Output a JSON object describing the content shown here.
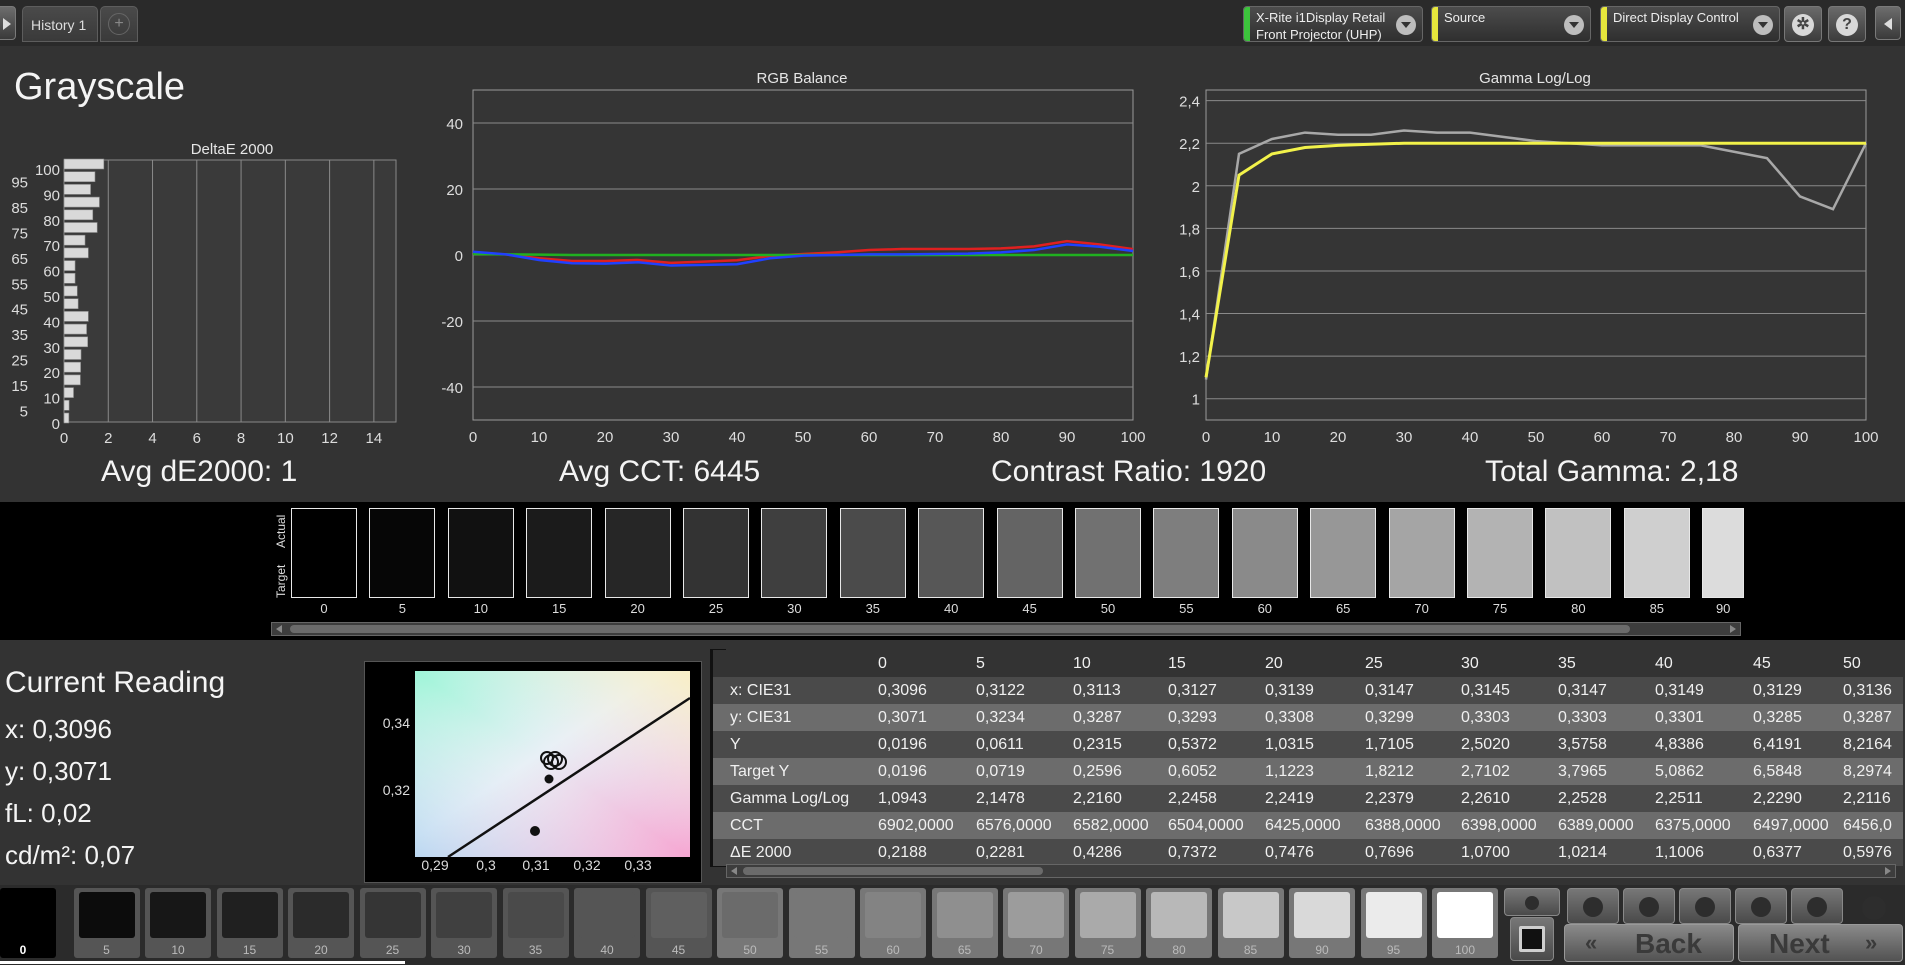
{
  "tabs": [
    {
      "label": "History 1"
    }
  ],
  "tab_add_label": "+",
  "header": {
    "meter": {
      "line1": "X-Rite i1Display Retail",
      "line2": "Front Projector (UHP)",
      "stripe_color": "#3cc43c"
    },
    "source": {
      "label": "Source",
      "stripe_color": "#e6e63c"
    },
    "display": {
      "label": "Direct Display Control",
      "stripe_color": "#e6e63c"
    },
    "icons": [
      "gear-icon",
      "help-icon",
      "collapse-icon"
    ]
  },
  "page_title": "Grayscale",
  "summary": {
    "avg_de": "Avg dE2000: 1",
    "avg_cct": "Avg CCT: 6445",
    "contrast": "Contrast Ratio: 1920",
    "total_gamma": "Total Gamma: 2,18"
  },
  "chart_data": [
    {
      "type": "bar",
      "title": "DeltaE 2000",
      "orientation": "horizontal",
      "categories": [
        "0",
        "5",
        "10",
        "15",
        "20",
        "25",
        "30",
        "35",
        "40",
        "45",
        "50",
        "55",
        "60",
        "65",
        "70",
        "75",
        "80",
        "85",
        "90",
        "95",
        "100"
      ],
      "values": [
        0.22,
        0.23,
        0.43,
        0.74,
        0.75,
        0.77,
        1.07,
        1.02,
        1.1,
        0.64,
        0.6,
        0.5,
        0.5,
        1.1,
        0.95,
        1.5,
        1.3,
        1.6,
        1.2,
        1.4,
        1.8
      ],
      "y_tick_labels_left": [
        "95",
        "85",
        "75",
        "65",
        "55",
        "45",
        "35",
        "25",
        "15",
        "5"
      ],
      "y_tick_labels_right": [
        "100",
        "90",
        "80",
        "70",
        "60",
        "50",
        "40",
        "30",
        "20",
        "10",
        "0"
      ],
      "x_ticks": [
        "0",
        "2",
        "4",
        "6",
        "8",
        "10",
        "12",
        "14"
      ],
      "xlim": [
        0,
        15
      ]
    },
    {
      "type": "line",
      "title": "RGB Balance",
      "x": [
        0,
        5,
        10,
        15,
        20,
        25,
        30,
        35,
        40,
        45,
        50,
        55,
        60,
        65,
        70,
        75,
        80,
        85,
        90,
        95,
        100
      ],
      "series": [
        {
          "color": "#e02020",
          "values": [
            0.5,
            0.2,
            -1,
            -1.8,
            -1.8,
            -1.5,
            -2.4,
            -2,
            -1.6,
            -0.3,
            0.3,
            0.8,
            1.5,
            1.8,
            1.8,
            1.8,
            2,
            2.6,
            4.2,
            3.2,
            1.8
          ]
        },
        {
          "color": "#20b020",
          "values": [
            0.3,
            0.2,
            0.1,
            0,
            0,
            0,
            0,
            0,
            0,
            0,
            0,
            0,
            0,
            0,
            0,
            0,
            0,
            0,
            0,
            0,
            0
          ]
        },
        {
          "color": "#2040ff",
          "values": [
            1,
            0.2,
            -1.5,
            -2.5,
            -2.6,
            -2.2,
            -3.2,
            -3,
            -2.8,
            -1,
            -0.2,
            0,
            0.2,
            0.2,
            0.3,
            0.4,
            0.8,
            1.5,
            3.2,
            2.5,
            1.2
          ]
        }
      ],
      "y_ticks": [
        "40",
        "20",
        "0",
        "-20",
        "-40"
      ],
      "x_ticks": [
        "0",
        "10",
        "20",
        "30",
        "40",
        "50",
        "60",
        "70",
        "80",
        "90",
        "100"
      ],
      "ylim": [
        -50,
        50
      ],
      "xlim": [
        0,
        100
      ]
    },
    {
      "type": "line",
      "title": "Gamma Log/Log",
      "x_measured": [
        0,
        5,
        10,
        15,
        20,
        25,
        30,
        35,
        40,
        45,
        50,
        55,
        60,
        65,
        70,
        75,
        80,
        85,
        90,
        95,
        100
      ],
      "series": [
        {
          "color": "#a8a8a8",
          "values": [
            1.09,
            2.15,
            2.22,
            2.25,
            2.24,
            2.24,
            2.26,
            2.25,
            2.25,
            2.23,
            2.21,
            2.2,
            2.19,
            2.19,
            2.19,
            2.19,
            2.16,
            2.13,
            1.95,
            1.89,
            2.2
          ]
        },
        {
          "color": "#f2f24a",
          "values": [
            1.1,
            2.05,
            2.15,
            2.18,
            2.19,
            2.195,
            2.2,
            2.2,
            2.2,
            2.2,
            2.2,
            2.2,
            2.2,
            2.2,
            2.2,
            2.2,
            2.2,
            2.2,
            2.2,
            2.2,
            2.2
          ]
        }
      ],
      "y_ticks": [
        "2,4",
        "2,2",
        "2",
        "1,8",
        "1,6",
        "1,4",
        "1,2",
        "1"
      ],
      "x_ticks": [
        "0",
        "10",
        "20",
        "30",
        "40",
        "50",
        "60",
        "70",
        "80",
        "90",
        "100"
      ],
      "ylim": [
        0.9,
        2.45
      ],
      "xlim": [
        0,
        100
      ]
    }
  ],
  "swatches": {
    "actual_label": "Actual",
    "target_label": "Target",
    "items": [
      {
        "label": "0",
        "color": "#000000"
      },
      {
        "label": "5",
        "color": "#060606"
      },
      {
        "label": "10",
        "color": "#111111"
      },
      {
        "label": "15",
        "color": "#1b1b1b"
      },
      {
        "label": "20",
        "color": "#262626"
      },
      {
        "label": "25",
        "color": "#333333"
      },
      {
        "label": "30",
        "color": "#3f3f3f"
      },
      {
        "label": "35",
        "color": "#4b4b4b"
      },
      {
        "label": "40",
        "color": "#575757"
      },
      {
        "label": "45",
        "color": "#646464"
      },
      {
        "label": "50",
        "color": "#717171"
      },
      {
        "label": "55",
        "color": "#7e7e7e"
      },
      {
        "label": "60",
        "color": "#8a8a8a"
      },
      {
        "label": "65",
        "color": "#979797"
      },
      {
        "label": "70",
        "color": "#a5a5a5"
      },
      {
        "label": "75",
        "color": "#b3b3b3"
      },
      {
        "label": "80",
        "color": "#c1c1c1"
      },
      {
        "label": "85",
        "color": "#cfcfcf"
      },
      {
        "label": "90",
        "color": "#dcdcdc"
      }
    ]
  },
  "current_reading": {
    "title": "Current Reading",
    "x": "x: 0,3096",
    "y": "y: 0,3071",
    "fl": "fL: 0,02",
    "cdm2": "cd/m²: 0,07"
  },
  "cie_chart": {
    "y_ticks": [
      "0,34",
      "0,32"
    ],
    "x_ticks": [
      "0,29",
      "0,3",
      "0,31",
      "0,32",
      "0,33"
    ]
  },
  "table": {
    "columns": [
      "0",
      "5",
      "10",
      "15",
      "20",
      "25",
      "30",
      "35",
      "40",
      "45",
      "50"
    ],
    "rows": [
      {
        "label": "x: CIE31",
        "values": [
          "0,3096",
          "0,3122",
          "0,3113",
          "0,3127",
          "0,3139",
          "0,3147",
          "0,3145",
          "0,3147",
          "0,3149",
          "0,3129",
          "0,3136"
        ]
      },
      {
        "label": "y: CIE31",
        "values": [
          "0,3071",
          "0,3234",
          "0,3287",
          "0,3293",
          "0,3308",
          "0,3299",
          "0,3303",
          "0,3303",
          "0,3301",
          "0,3285",
          "0,3287"
        ]
      },
      {
        "label": "Y",
        "values": [
          "0,0196",
          "0,0611",
          "0,2315",
          "0,5372",
          "1,0315",
          "1,7105",
          "2,5020",
          "3,5758",
          "4,8386",
          "6,4191",
          "8,2164"
        ]
      },
      {
        "label": "Target Y",
        "values": [
          "0,0196",
          "0,0719",
          "0,2596",
          "0,6052",
          "1,1223",
          "1,8212",
          "2,7102",
          "3,7965",
          "5,0862",
          "6,5848",
          "8,2974"
        ]
      },
      {
        "label": "Gamma Log/Log",
        "values": [
          "1,0943",
          "2,1478",
          "2,2160",
          "2,2458",
          "2,2419",
          "2,2379",
          "2,2610",
          "2,2528",
          "2,2511",
          "2,2290",
          "2,2116"
        ]
      },
      {
        "label": "CCT",
        "values": [
          "6902,0000",
          "6576,0000",
          "6582,0000",
          "6504,0000",
          "6425,0000",
          "6388,0000",
          "6398,0000",
          "6389,0000",
          "6375,0000",
          "6497,0000",
          "6456,0"
        ]
      },
      {
        "label": "ΔE 2000",
        "values": [
          "0,2188",
          "0,2281",
          "0,4286",
          "0,7372",
          "0,7476",
          "0,7696",
          "1,0700",
          "1,0214",
          "1,1006",
          "0,6377",
          "0,5976"
        ]
      }
    ]
  },
  "bottom_swatches": [
    {
      "label": "0",
      "color": "#000000"
    },
    {
      "label": "5",
      "color": "#0c0c0c"
    },
    {
      "label": "10",
      "color": "#171717"
    },
    {
      "label": "15",
      "color": "#202020"
    },
    {
      "label": "20",
      "color": "#2b2b2b"
    },
    {
      "label": "25",
      "color": "#353535"
    },
    {
      "label": "30",
      "color": "#404040"
    },
    {
      "label": "35",
      "color": "#4a4a4a"
    },
    {
      "label": "40",
      "color": "#555555"
    },
    {
      "label": "45",
      "color": "#5f5f5f"
    },
    {
      "label": "50",
      "color": "#6b6b6b"
    },
    {
      "label": "55",
      "color": "#777777"
    },
    {
      "label": "60",
      "color": "#838383"
    },
    {
      "label": "65",
      "color": "#8f8f8f"
    },
    {
      "label": "70",
      "color": "#9c9c9c"
    },
    {
      "label": "75",
      "color": "#aaaaaa"
    },
    {
      "label": "80",
      "color": "#b8b8b8"
    },
    {
      "label": "85",
      "color": "#c8c8c8"
    },
    {
      "label": "90",
      "color": "#d9d9d9"
    },
    {
      "label": "95",
      "color": "#ebebeb"
    },
    {
      "label": "100",
      "color": "#ffffff"
    }
  ],
  "controls": {
    "back_label": "Back",
    "next_label": "Next",
    "icons": [
      "stop-icon",
      "play-icon",
      "fit-icon",
      "loop-icon",
      "refresh-icon"
    ]
  }
}
